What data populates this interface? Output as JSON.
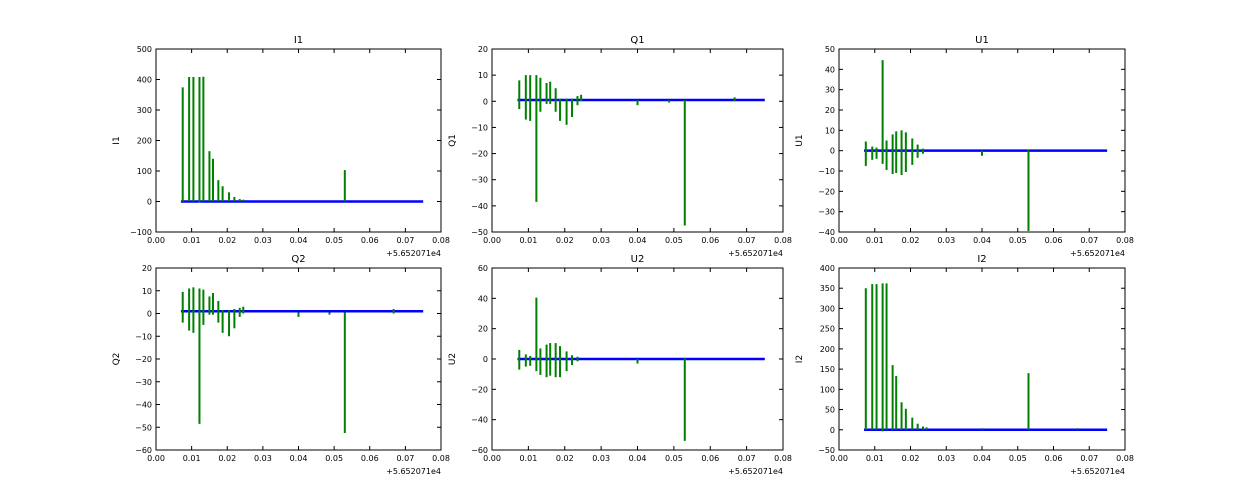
{
  "colors": {
    "spike": "#008000",
    "baseline": "#0000ff",
    "axes": "#000000"
  },
  "chart_data": [
    {
      "type": "line",
      "title": "I1",
      "ylabel": "I1",
      "xlabel": "",
      "x_offset_label": "+5.652071e4",
      "xlim": [
        0.0,
        0.08
      ],
      "ylim": [
        -100,
        500
      ],
      "xticks": [
        "0.00",
        "0.01",
        "0.02",
        "0.03",
        "0.04",
        "0.05",
        "0.06",
        "0.07",
        "0.08"
      ],
      "yticks": [
        -100,
        0,
        100,
        200,
        300,
        400,
        500
      ],
      "ytick_labels": [
        "−100",
        "0",
        "100",
        "200",
        "300",
        "400",
        "500"
      ],
      "baseline": {
        "x": [
          0.007,
          0.075
        ],
        "y": 0
      },
      "spikes": [
        [
          0.0075,
          0,
          374
        ],
        [
          0.0093,
          0,
          408
        ],
        [
          0.0105,
          0,
          408
        ],
        [
          0.0122,
          -3,
          408
        ],
        [
          0.0133,
          0,
          409
        ],
        [
          0.015,
          0,
          165
        ],
        [
          0.016,
          0,
          140
        ],
        [
          0.0175,
          0,
          70
        ],
        [
          0.0187,
          0,
          50
        ],
        [
          0.0205,
          0,
          30
        ],
        [
          0.022,
          0,
          15
        ],
        [
          0.0235,
          0,
          8
        ],
        [
          0.0245,
          0,
          6
        ],
        [
          0.053,
          0,
          103
        ]
      ]
    },
    {
      "type": "line",
      "title": "Q1",
      "ylabel": "Q1",
      "xlabel": "",
      "x_offset_label": "+5.652071e4",
      "xlim": [
        0.0,
        0.08
      ],
      "ylim": [
        -50,
        20
      ],
      "xticks": [
        "0.00",
        "0.01",
        "0.02",
        "0.03",
        "0.04",
        "0.05",
        "0.06",
        "0.07",
        "0.08"
      ],
      "yticks": [
        -50,
        -40,
        -30,
        -20,
        -10,
        0,
        10,
        20
      ],
      "ytick_labels": [
        "−50",
        "−40",
        "−30",
        "−20",
        "−10",
        "0",
        "10",
        "20"
      ],
      "baseline": {
        "x": [
          0.007,
          0.075
        ],
        "y": 0.5
      },
      "spikes": [
        [
          0.0075,
          -3,
          8
        ],
        [
          0.0093,
          -7,
          10
        ],
        [
          0.0105,
          -7.5,
          10
        ],
        [
          0.0122,
          -38.5,
          10
        ],
        [
          0.0133,
          -4,
          9
        ],
        [
          0.015,
          -1,
          7
        ],
        [
          0.016,
          -1,
          7.5
        ],
        [
          0.0175,
          -4,
          5
        ],
        [
          0.0187,
          -7.5,
          1
        ],
        [
          0.0205,
          -9,
          1
        ],
        [
          0.022,
          -6,
          1
        ],
        [
          0.0235,
          -1.5,
          2
        ],
        [
          0.0245,
          0,
          2.5
        ],
        [
          0.04,
          -1.5,
          0.5
        ],
        [
          0.0487,
          -0.5,
          0.5
        ],
        [
          0.053,
          -47.5,
          0.5
        ],
        [
          0.0667,
          0,
          1.5
        ]
      ]
    },
    {
      "type": "line",
      "title": "U1",
      "ylabel": "U1",
      "xlabel": "",
      "x_offset_label": "+5.652071e4",
      "xlim": [
        0.0,
        0.08
      ],
      "ylim": [
        -40,
        50
      ],
      "xticks": [
        "0.00",
        "0.01",
        "0.02",
        "0.03",
        "0.04",
        "0.05",
        "0.06",
        "0.07",
        "0.08"
      ],
      "yticks": [
        -40,
        -30,
        -20,
        -10,
        0,
        10,
        20,
        30,
        40,
        50
      ],
      "ytick_labels": [
        "−40",
        "−30",
        "−20",
        "−10",
        "0",
        "10",
        "20",
        "30",
        "40",
        "50"
      ],
      "baseline": {
        "x": [
          0.007,
          0.075
        ],
        "y": 0
      },
      "spikes": [
        [
          0.0075,
          -7.5,
          4.5
        ],
        [
          0.0093,
          -4.5,
          2
        ],
        [
          0.0105,
          -4,
          1.5
        ],
        [
          0.0122,
          -6.5,
          44.5
        ],
        [
          0.0133,
          -9.5,
          5
        ],
        [
          0.015,
          -11.5,
          8
        ],
        [
          0.016,
          -11,
          9.5
        ],
        [
          0.0175,
          -12,
          10
        ],
        [
          0.0187,
          -10.5,
          9
        ],
        [
          0.0205,
          -7,
          6
        ],
        [
          0.022,
          -3.5,
          3
        ],
        [
          0.0235,
          -1.5,
          1
        ],
        [
          0.04,
          -2.5,
          0
        ],
        [
          0.053,
          -39.5,
          0.5
        ]
      ]
    },
    {
      "type": "line",
      "title": "Q2",
      "ylabel": "Q2",
      "xlabel": "",
      "x_offset_label": "+5.652071e4",
      "xlim": [
        0.0,
        0.08
      ],
      "ylim": [
        -60,
        20
      ],
      "xticks": [
        "0.00",
        "0.01",
        "0.02",
        "0.03",
        "0.04",
        "0.05",
        "0.06",
        "0.07",
        "0.08"
      ],
      "yticks": [
        -60,
        -50,
        -40,
        -30,
        -20,
        -10,
        0,
        10,
        20
      ],
      "ytick_labels": [
        "−60",
        "−50",
        "−40",
        "−30",
        "−20",
        "−10",
        "0",
        "10",
        "20"
      ],
      "baseline": {
        "x": [
          0.007,
          0.075
        ],
        "y": 1
      },
      "spikes": [
        [
          0.0075,
          -4,
          9.5
        ],
        [
          0.0093,
          -7.5,
          11
        ],
        [
          0.0105,
          -8.5,
          11.5
        ],
        [
          0.0122,
          -48.5,
          11
        ],
        [
          0.0133,
          -5,
          10.5
        ],
        [
          0.015,
          -0.5,
          7.5
        ],
        [
          0.016,
          -0.5,
          9
        ],
        [
          0.0175,
          -4,
          5.5
        ],
        [
          0.0187,
          -8.5,
          1.5
        ],
        [
          0.0205,
          -10,
          1.5
        ],
        [
          0.022,
          -6.5,
          2
        ],
        [
          0.0235,
          -1.5,
          2.5
        ],
        [
          0.0245,
          0,
          3
        ],
        [
          0.04,
          -1.5,
          0.5
        ],
        [
          0.0487,
          -0.5,
          0.5
        ],
        [
          0.053,
          -52.5,
          0.5
        ],
        [
          0.0667,
          0,
          2
        ]
      ]
    },
    {
      "type": "line",
      "title": "U2",
      "ylabel": "U2",
      "xlabel": "",
      "x_offset_label": "+5.652071e4",
      "xlim": [
        0.0,
        0.08
      ],
      "ylim": [
        -60,
        60
      ],
      "xticks": [
        "0.00",
        "0.01",
        "0.02",
        "0.03",
        "0.04",
        "0.05",
        "0.06",
        "0.07",
        "0.08"
      ],
      "yticks": [
        -60,
        -40,
        -20,
        0,
        20,
        40,
        60
      ],
      "ytick_labels": [
        "−60",
        "−40",
        "−20",
        "0",
        "20",
        "40",
        "60"
      ],
      "baseline": {
        "x": [
          0.007,
          0.075
        ],
        "y": 0
      },
      "spikes": [
        [
          0.0075,
          -7,
          6
        ],
        [
          0.0093,
          -5,
          3
        ],
        [
          0.0105,
          -4.5,
          2
        ],
        [
          0.0122,
          -8,
          40.5
        ],
        [
          0.0133,
          -10.5,
          7
        ],
        [
          0.015,
          -12,
          9.5
        ],
        [
          0.016,
          -11,
          10.5
        ],
        [
          0.0175,
          -12,
          10.5
        ],
        [
          0.0187,
          -12,
          8.5
        ],
        [
          0.0205,
          -8,
          5
        ],
        [
          0.022,
          -4,
          2.5
        ],
        [
          0.0235,
          -1.5,
          1.5
        ],
        [
          0.04,
          -3,
          0
        ],
        [
          0.053,
          -54,
          0.5
        ]
      ]
    },
    {
      "type": "line",
      "title": "I2",
      "ylabel": "I2",
      "xlabel": "",
      "x_offset_label": "+5.652071e4",
      "xlim": [
        0.0,
        0.08
      ],
      "ylim": [
        -50,
        400
      ],
      "xticks": [
        "0.00",
        "0.01",
        "0.02",
        "0.03",
        "0.04",
        "0.05",
        "0.06",
        "0.07",
        "0.08"
      ],
      "yticks": [
        -50,
        0,
        50,
        100,
        150,
        200,
        250,
        300,
        350,
        400
      ],
      "ytick_labels": [
        "−50",
        "0",
        "50",
        "100",
        "150",
        "200",
        "250",
        "300",
        "350",
        "400"
      ],
      "baseline": {
        "x": [
          0.007,
          0.075
        ],
        "y": 0
      },
      "spikes": [
        [
          0.0075,
          0,
          350
        ],
        [
          0.0093,
          0,
          360
        ],
        [
          0.0105,
          0,
          360
        ],
        [
          0.0122,
          -4,
          362
        ],
        [
          0.0133,
          0,
          362
        ],
        [
          0.015,
          0,
          160
        ],
        [
          0.016,
          0,
          133
        ],
        [
          0.0175,
          0,
          68
        ],
        [
          0.0187,
          0,
          52
        ],
        [
          0.0205,
          0,
          30
        ],
        [
          0.022,
          0,
          15
        ],
        [
          0.0235,
          0,
          8
        ],
        [
          0.0245,
          0,
          6
        ],
        [
          0.04,
          0,
          4
        ],
        [
          0.053,
          0,
          140
        ],
        [
          0.0667,
          0,
          4
        ]
      ]
    }
  ]
}
